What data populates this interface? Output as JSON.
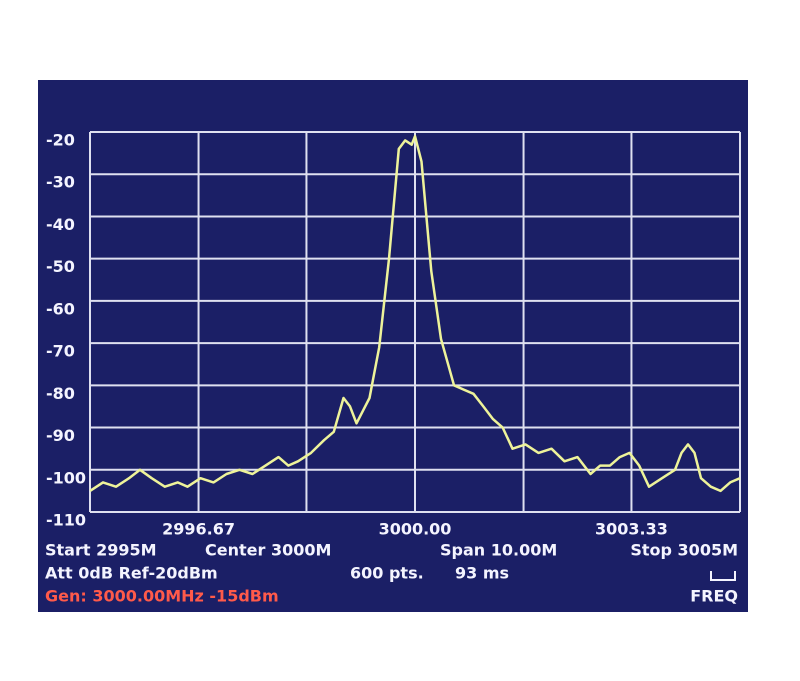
{
  "chart_data": {
    "type": "line",
    "x": [
      2995,
      2995.2,
      2995.4,
      2995.6,
      2995.77,
      2995.95,
      2996.15,
      2996.35,
      2996.5,
      2996.7,
      2996.9,
      2997.1,
      2997.3,
      2997.5,
      2997.7,
      2997.9,
      2998.05,
      2998.2,
      2998.4,
      2998.6,
      2998.75,
      2998.9,
      2999.0,
      2999.1,
      2999.2,
      2999.3,
      2999.45,
      2999.6,
      2999.75,
      2999.85,
      2999.95,
      3000.0,
      3000.1,
      3000.25,
      3000.4,
      3000.6,
      3000.75,
      3000.9,
      3001.05,
      3001.2,
      3001.35,
      3001.5,
      3001.7,
      3001.9,
      3002.1,
      3002.3,
      3002.5,
      3002.7,
      3002.85,
      3003.0,
      3003.15,
      3003.3,
      3003.45,
      3003.6,
      3003.8,
      3004.0,
      3004.1,
      3004.2,
      3004.3,
      3004.4,
      3004.55,
      3004.7,
      3004.85,
      3005
    ],
    "values": [
      -105,
      -103,
      -104,
      -102,
      -100,
      -102,
      -104,
      -103,
      -104,
      -102,
      -103,
      -101,
      -100,
      -101,
      -99,
      -97,
      -99,
      -98,
      -96,
      -93,
      -91,
      -83,
      -85,
      -89,
      -86,
      -83,
      -71,
      -50,
      -24,
      -22,
      -23,
      -21,
      -27,
      -53,
      -69,
      -80,
      -81,
      -82,
      -85,
      -88,
      -90,
      -95,
      -94,
      -96,
      -95,
      -98,
      -97,
      -101,
      -99,
      -99,
      -97,
      -96,
      -99,
      -104,
      -102,
      -100,
      -96,
      -94,
      -96,
      -102,
      -104,
      -105,
      -103,
      -102
    ],
    "color": "#eef39a",
    "xlim": [
      2995,
      3005
    ],
    "xticks": [
      2996.67,
      {
        "value": 3000,
        "label": "3000.00"
      },
      3003.33
    ],
    "xgrid": [
      2995,
      2998.33,
      3001.67,
      3005
    ],
    "ylim": [
      -110,
      -20
    ],
    "yticks": [
      -20,
      -30,
      -40,
      -50,
      -60,
      -70,
      -80,
      -90,
      -100,
      -110
    ],
    "grid": true
  },
  "status": {
    "start": "Start 2995M",
    "center": "Center 3000M",
    "span": "Span 10.00M",
    "stop": "Stop 3005M",
    "att": "Att 0dB Ref-20dBm",
    "points": "600 pts.",
    "sweep": "93 ms",
    "mode": "FREQ",
    "generator": "Gen: 3000.00MHz -15dBm"
  }
}
